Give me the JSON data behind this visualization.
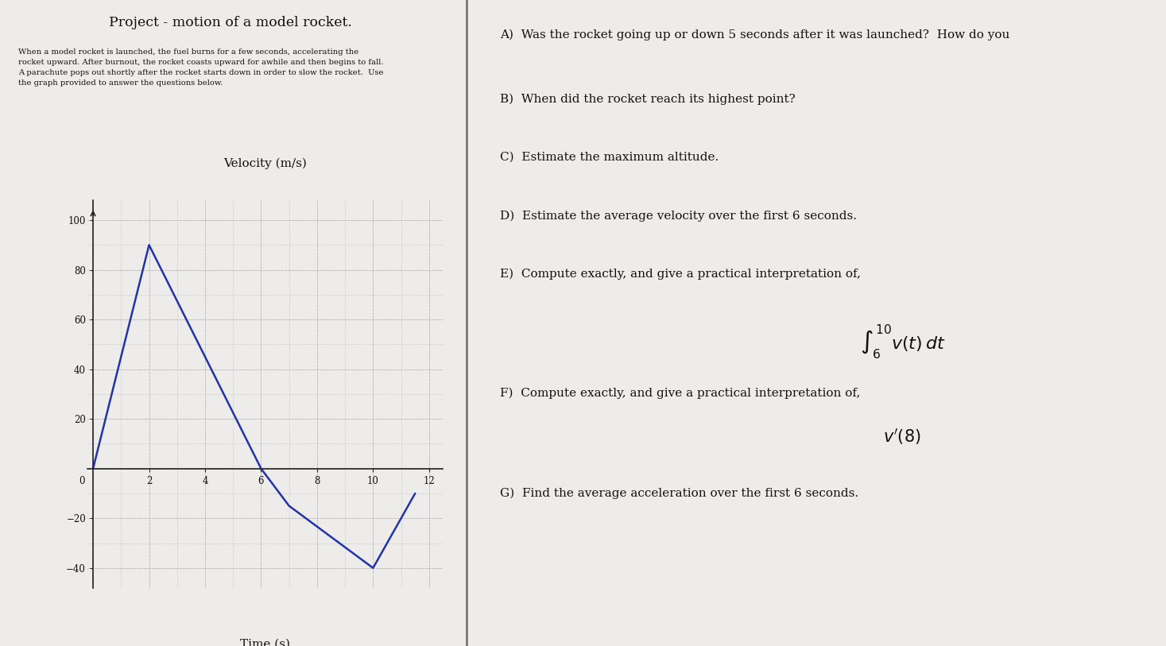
{
  "title": "Project - motion of a model rocket.",
  "description_line1": "When a model rocket is launched, the fuel burns for a few seconds, accelerating the",
  "description_line2": "rocket upward. After burnout, the rocket coasts upward for awhile and then begins to fall.",
  "description_line3": "A parachute pops out shortly after the rocket starts down in order to slow the rocket.  Use",
  "description_line4": "the graph provided to answer the questions below.",
  "xlabel": "Time (s)",
  "ylabel": "Velocity (m/s)",
  "curve_x": [
    0,
    2,
    6,
    7.0,
    10.0,
    11.5
  ],
  "curve_y": [
    0,
    90,
    0,
    -15,
    -40,
    -10
  ],
  "line_color": "#2233aa",
  "line_width": 1.8,
  "xlim": [
    -0.2,
    12.5
  ],
  "ylim": [
    -48,
    108
  ],
  "xticks": [
    2,
    4,
    6,
    8,
    10,
    12
  ],
  "yticks": [
    -40,
    -20,
    20,
    40,
    60,
    80,
    100
  ],
  "grid_major_xticks": [
    0,
    2,
    4,
    6,
    8,
    10,
    12
  ],
  "grid_major_yticks": [
    -40,
    -20,
    0,
    20,
    40,
    60,
    80,
    100
  ],
  "grid_minor_xticks": [
    0,
    1,
    2,
    3,
    4,
    5,
    6,
    7,
    8,
    9,
    10,
    11,
    12
  ],
  "grid_minor_yticks": [
    -40,
    -30,
    -20,
    -10,
    0,
    10,
    20,
    30,
    40,
    50,
    60,
    70,
    80,
    90,
    100
  ],
  "grid_color": "#bbbbbb",
  "bg_color": "#eeecea",
  "right_bg": "#e8e6e2",
  "divider_color": "#777777",
  "questions_A": "A)  Was the rocket going up or down 5 seconds after it was launched?  How do you",
  "questions_B": "B)  When did the rocket reach its highest point?",
  "questions_C": "C)  Estimate the maximum altitude.",
  "questions_D": "D)  Estimate the average velocity over the first 6 seconds.",
  "questions_E": "E)  Compute exactly, and give a practical interpretation of,",
  "questions_F": "F)  Compute exactly, and give a practical interpretation of,",
  "questions_G": "G)  Find the average acceleration over the first 6 seconds.",
  "integral_formula": "$\\int_{6}^{10} v(t)\\,dt$",
  "derivative_formula": "$v'(8)$"
}
